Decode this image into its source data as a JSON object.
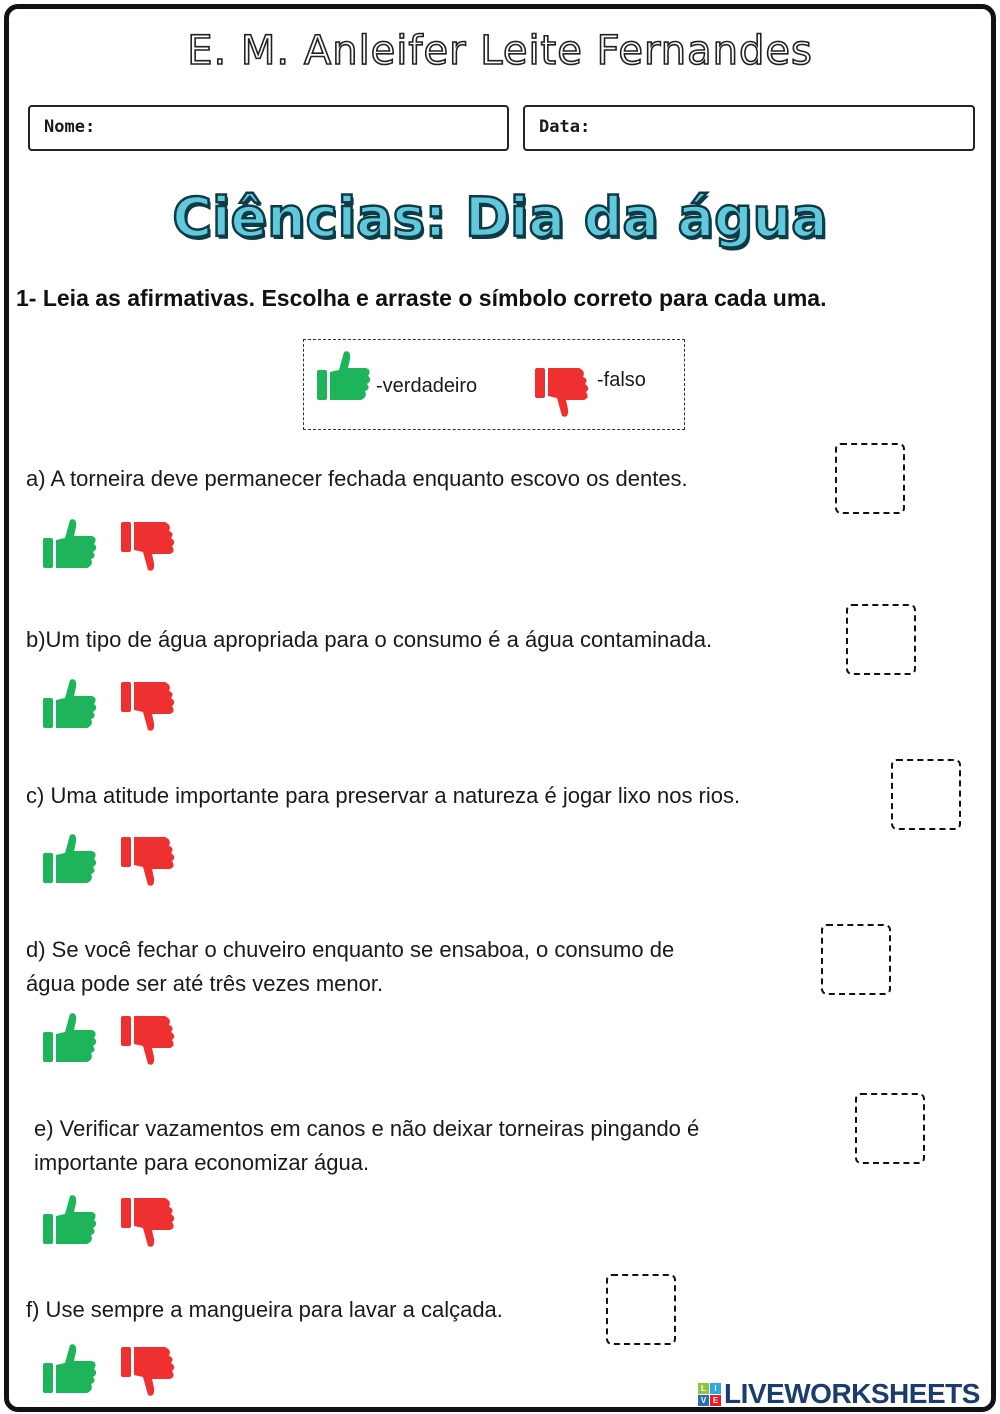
{
  "school_name": "E. M. Anleifer Leite Fernandes",
  "fields": {
    "name_label": "Nome:",
    "date_label": "Data:"
  },
  "title": "Ciências: Dia da água",
  "instruction": "1- Leia as afirmativas. Escolha e arraste o símbolo correto para cada uma.",
  "legend": {
    "true_label": "-verdadeiro",
    "false_label": "-falso",
    "true_icon": "thumbs-up-icon",
    "false_icon": "thumbs-down-icon"
  },
  "colors": {
    "true": "#1db45a",
    "false": "#ee3030",
    "title_fill": "#62c9dc",
    "title_outline": "#0d3c46",
    "brand": "#1b3d6e"
  },
  "questions": [
    {
      "line1": "a) A torneira deve permanecer fechada enquanto escovo os dentes.",
      "line2": ""
    },
    {
      "line1": "b)Um tipo de água apropriada para o consumo é a água contaminada.",
      "line2": ""
    },
    {
      "line1": "c) Uma atitude importante para preservar a natureza é jogar lixo nos rios.",
      "line2": ""
    },
    {
      "line1": "d) Se você fechar o chuveiro enquanto se ensaboa, o consumo de",
      "line2": "água pode ser até três vezes menor."
    },
    {
      "line1": "e) Verificar vazamentos em canos e não deixar torneiras pingando é",
      "line2": "importante para economizar água."
    },
    {
      "line1": "f) Use sempre a mangueira para lavar a calçada.",
      "line2": ""
    }
  ],
  "brand": {
    "text": "LIVEWORKSHEETS",
    "tiles": [
      "L",
      "I",
      "V",
      "E"
    ]
  }
}
